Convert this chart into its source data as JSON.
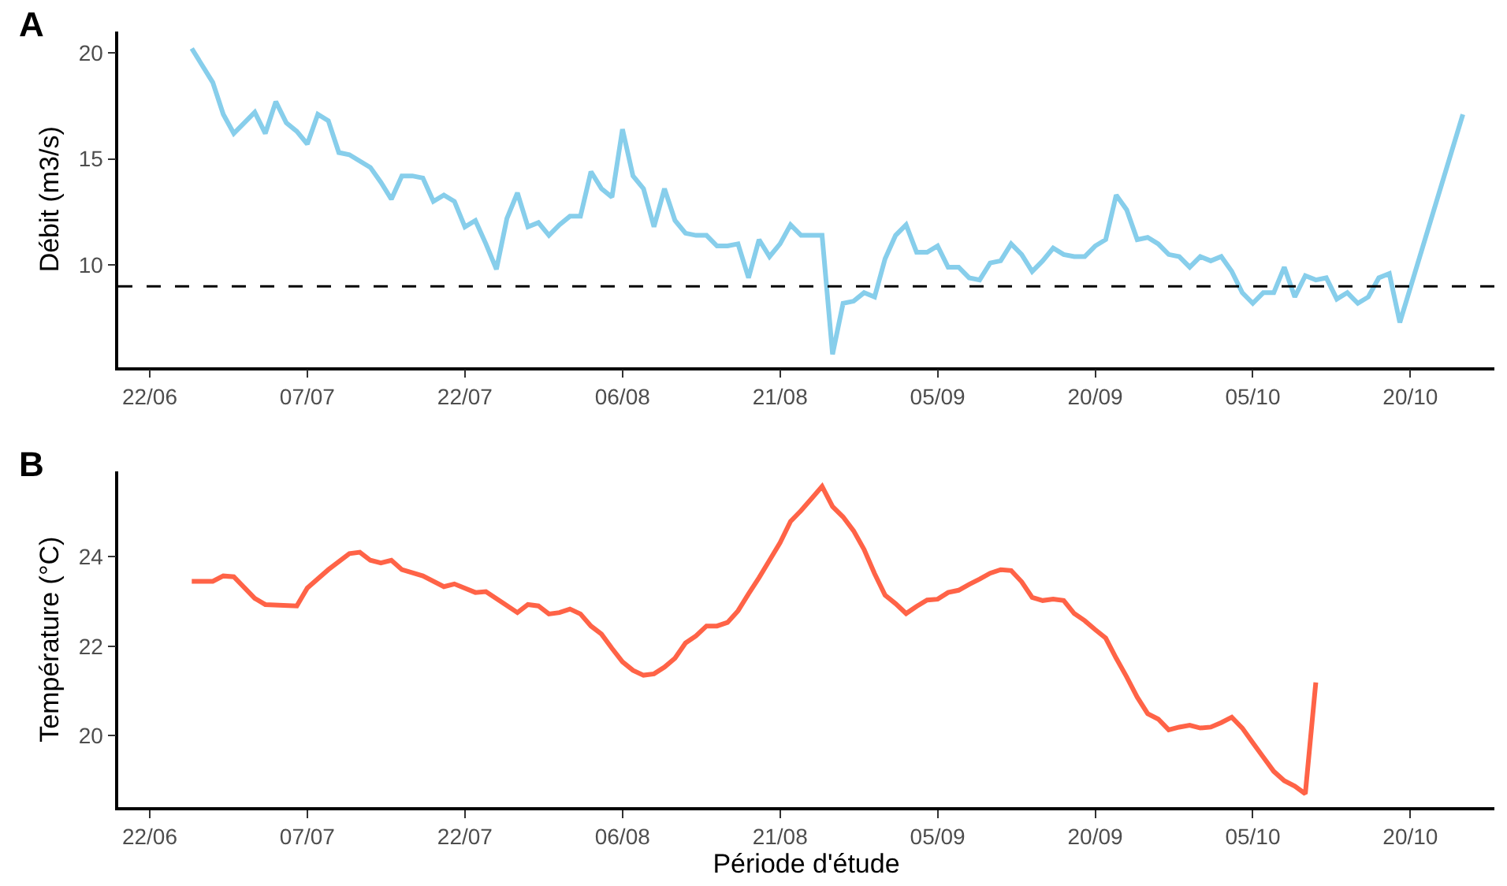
{
  "chart_data": [
    {
      "type": "line",
      "ylabel": "Débit (m3/s)",
      "annotations": [
        "A"
      ],
      "x": [
        "--06-26",
        "--06-28",
        "--06-29",
        "--06-30",
        "--07-02",
        "--07-03",
        "--07-04",
        "--07-05",
        "--07-06",
        "--07-07",
        "--07-08",
        "--07-09",
        "--07-10",
        "--07-11",
        "--07-13",
        "--07-14",
        "--07-15",
        "--07-16",
        "--07-17",
        "--07-18",
        "--07-19",
        "--07-20",
        "--07-21",
        "--07-22",
        "--07-23",
        "--07-24",
        "--07-25",
        "--07-26",
        "--07-27",
        "--07-28",
        "--07-29",
        "--07-30",
        "--07-31",
        "--08-01",
        "--08-02",
        "--08-03",
        "--08-04",
        "--08-05",
        "--08-06",
        "--08-07",
        "--08-08",
        "--08-09",
        "--08-10",
        "--08-11",
        "--08-12",
        "--08-13",
        "--08-14",
        "--08-15",
        "--08-16",
        "--08-17",
        "--08-18",
        "--08-19",
        "--08-20",
        "--08-21",
        "--08-22",
        "--08-23",
        "--08-25",
        "--08-26",
        "--08-27",
        "--08-28",
        "--08-29",
        "--08-30",
        "--08-31",
        "--09-01",
        "--09-02",
        "--09-03",
        "--09-04",
        "--09-05",
        "--09-06",
        "--09-07",
        "--09-08",
        "--09-09",
        "--09-10",
        "--09-11",
        "--09-12",
        "--09-13",
        "--09-14",
        "--09-15",
        "--09-16",
        "--09-17",
        "--09-18",
        "--09-19",
        "--09-20",
        "--09-21",
        "--09-22",
        "--09-23",
        "--09-24",
        "--09-25",
        "--09-26",
        "--09-27",
        "--09-28",
        "--09-29",
        "--09-30",
        "--10-01",
        "--10-02",
        "--10-03",
        "--10-04",
        "--10-05",
        "--10-06",
        "--10-07",
        "--10-08",
        "--10-09",
        "--10-10",
        "--10-11",
        "--10-12",
        "--10-13",
        "--10-14",
        "--10-15",
        "--10-16",
        "--10-17",
        "--10-18",
        "--10-19",
        "--10-25"
      ],
      "series": [
        {
          "color": "#87ceeb",
          "values": [
            20.2,
            18.6,
            17.1,
            16.2,
            17.2,
            16.2,
            17.7,
            16.7,
            16.3,
            15.7,
            17.1,
            16.8,
            15.3,
            15.2,
            14.6,
            13.9,
            13.1,
            14.2,
            14.2,
            14.1,
            13.0,
            13.3,
            13.0,
            11.8,
            12.1,
            11.0,
            9.8,
            12.2,
            13.4,
            11.8,
            12.0,
            11.4,
            11.9,
            12.3,
            12.3,
            14.4,
            13.6,
            13.2,
            16.4,
            14.2,
            13.6,
            11.8,
            13.6,
            12.1,
            11.5,
            11.4,
            11.4,
            10.9,
            10.9,
            11.0,
            9.4,
            11.2,
            10.4,
            11.0,
            11.9,
            11.4,
            11.4,
            5.8,
            8.2,
            8.3,
            8.7,
            8.5,
            10.3,
            11.4,
            11.9,
            10.6,
            10.6,
            10.9,
            9.9,
            9.9,
            9.4,
            9.3,
            10.1,
            10.2,
            11.0,
            10.5,
            9.7,
            10.2,
            10.8,
            10.5,
            10.4,
            10.4,
            10.9,
            11.2,
            13.3,
            12.6,
            11.2,
            11.3,
            11.0,
            10.5,
            10.4,
            9.9,
            10.4,
            10.2,
            10.4,
            9.7,
            8.7,
            8.2,
            8.7,
            8.7,
            9.9,
            8.5,
            9.5,
            9.3,
            9.4,
            8.4,
            8.7,
            8.2,
            8.5,
            9.4,
            9.6,
            7.3,
            17.1
          ]
        }
      ],
      "xlim": [
        "--06-19",
        "--10-28"
      ],
      "xticks": [
        {
          "value": "--06-22",
          "label": "22/06"
        },
        {
          "value": "--07-07",
          "label": "07/07"
        },
        {
          "value": "--07-22",
          "label": "22/07"
        },
        {
          "value": "--08-06",
          "label": "06/08"
        },
        {
          "value": "--08-21",
          "label": "21/08"
        },
        {
          "value": "--09-05",
          "label": "05/09"
        },
        {
          "value": "--09-20",
          "label": "20/09"
        },
        {
          "value": "--10-05",
          "label": "05/10"
        },
        {
          "value": "--10-20",
          "label": "20/10"
        }
      ],
      "ylim": [
        5.2,
        21.0
      ],
      "yticks": [
        10,
        15,
        20
      ],
      "ref_lines": [
        {
          "axis": "y",
          "value": 9.0,
          "label": null,
          "color": "#000000",
          "line_style": "dashed"
        }
      ],
      "line_style": "solid",
      "marker": "none"
    },
    {
      "type": "line",
      "ylabel": "Température (°C)",
      "xlabel": "Période d'étude",
      "annotations": [
        "B"
      ],
      "x": [
        "--06-26",
        "--06-28",
        "--06-29",
        "--06-30",
        "--07-02",
        "--07-03",
        "--07-06",
        "--07-07",
        "--07-09",
        "--07-11",
        "--07-12",
        "--07-13",
        "--07-14",
        "--07-15",
        "--07-16",
        "--07-18",
        "--07-20",
        "--07-21",
        "--07-23",
        "--07-24",
        "--07-27",
        "--07-28",
        "--07-29",
        "--07-30",
        "--07-31",
        "--08-01",
        "--08-02",
        "--08-03",
        "--08-04",
        "--08-05",
        "--08-06",
        "--08-07",
        "--08-08",
        "--08-09",
        "--08-10",
        "--08-11",
        "--08-12",
        "--08-13",
        "--08-14",
        "--08-15",
        "--08-16",
        "--08-17",
        "--08-18",
        "--08-19",
        "--08-20",
        "--08-21",
        "--08-22",
        "--08-23",
        "--08-24",
        "--08-25",
        "--08-26",
        "--08-27",
        "--08-28",
        "--08-29",
        "--08-30",
        "--08-31",
        "--09-01",
        "--09-02",
        "--09-03",
        "--09-04",
        "--09-05",
        "--09-06",
        "--09-07",
        "--09-08",
        "--09-09",
        "--09-10",
        "--09-11",
        "--09-12",
        "--09-13",
        "--09-14",
        "--09-15",
        "--09-16",
        "--09-17",
        "--09-18",
        "--09-19",
        "--09-20",
        "--09-21",
        "--09-22",
        "--09-23",
        "--09-24",
        "--09-25",
        "--09-26",
        "--09-27",
        "--09-28",
        "--09-29",
        "--09-30",
        "--10-01",
        "--10-02",
        "--10-03",
        "--10-04",
        "--10-05",
        "--10-06",
        "--10-07",
        "--10-08",
        "--10-09",
        "--10-10",
        "--10-11"
      ],
      "series": [
        {
          "color": "#ff6347",
          "values": [
            23.45,
            23.45,
            23.57,
            23.55,
            23.07,
            22.93,
            22.9,
            23.3,
            23.71,
            24.07,
            24.1,
            23.92,
            23.86,
            23.92,
            23.71,
            23.57,
            23.33,
            23.39,
            23.2,
            23.22,
            22.75,
            22.93,
            22.9,
            22.72,
            22.75,
            22.83,
            22.72,
            22.45,
            22.27,
            21.95,
            21.65,
            21.46,
            21.35,
            21.38,
            21.53,
            21.73,
            22.07,
            22.23,
            22.45,
            22.45,
            22.53,
            22.79,
            23.17,
            23.53,
            23.92,
            24.31,
            24.79,
            25.03,
            25.3,
            25.57,
            25.12,
            24.89,
            24.58,
            24.16,
            23.62,
            23.14,
            22.95,
            22.73,
            22.89,
            23.03,
            23.05,
            23.2,
            23.25,
            23.38,
            23.5,
            23.63,
            23.71,
            23.69,
            23.44,
            23.09,
            23.02,
            23.05,
            23.02,
            22.73,
            22.57,
            22.37,
            22.18,
            21.73,
            21.31,
            20.86,
            20.49,
            20.37,
            20.13,
            20.19,
            20.23,
            20.17,
            20.19,
            20.29,
            20.41,
            20.17,
            19.84,
            19.52,
            19.2,
            18.99,
            18.87,
            18.7,
            21.19
          ]
        }
      ],
      "xlim": [
        "--06-19",
        "--10-28"
      ],
      "xticks": [
        {
          "value": "--06-22",
          "label": "22/06"
        },
        {
          "value": "--07-07",
          "label": "07/07"
        },
        {
          "value": "--07-22",
          "label": "22/07"
        },
        {
          "value": "--08-06",
          "label": "06/08"
        },
        {
          "value": "--08-21",
          "label": "21/08"
        },
        {
          "value": "--09-05",
          "label": "05/09"
        },
        {
          "value": "--09-20",
          "label": "20/09"
        },
        {
          "value": "--10-05",
          "label": "05/10"
        },
        {
          "value": "--10-20",
          "label": "20/10"
        }
      ],
      "ylim": [
        18.4,
        25.9
      ],
      "yticks": [
        20,
        22,
        24
      ],
      "line_style": "solid",
      "marker": "none"
    }
  ]
}
